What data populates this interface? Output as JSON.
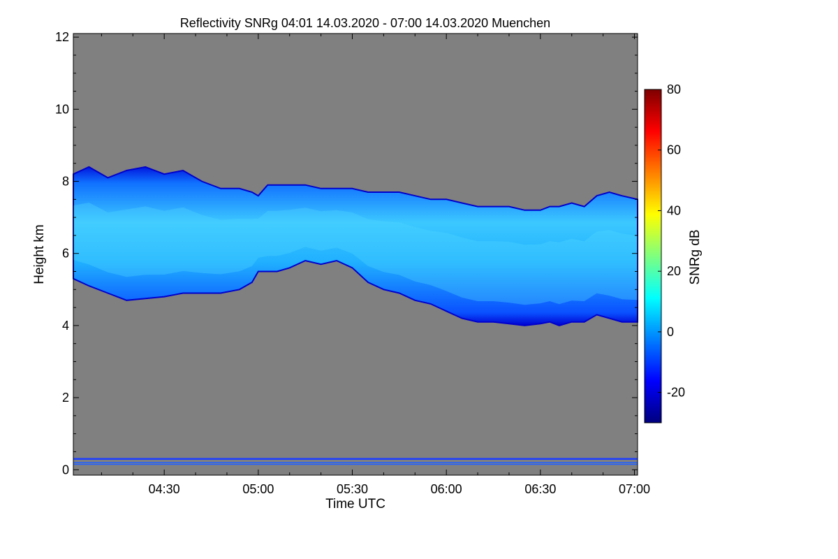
{
  "chart_data": {
    "type": "heatmap",
    "title": "Reflectivity SNRg   04:01 14.03.2020 - 07:00 14.03.2020 Muenchen",
    "xlabel": "Time UTC",
    "ylabel": "Height km",
    "x_range_minutes_utc": [
      241,
      421
    ],
    "x_ticks": [
      {
        "value": 270,
        "label": "04:30"
      },
      {
        "value": 300,
        "label": "05:00"
      },
      {
        "value": 330,
        "label": "05:30"
      },
      {
        "value": 360,
        "label": "06:00"
      },
      {
        "value": 390,
        "label": "06:30"
      },
      {
        "value": 420,
        "label": "07:00"
      }
    ],
    "y_range_km": [
      -0.15,
      12.1
    ],
    "y_ticks": [
      {
        "value": 0,
        "label": "0"
      },
      {
        "value": 2,
        "label": "2"
      },
      {
        "value": 4,
        "label": "4"
      },
      {
        "value": 6,
        "label": "6"
      },
      {
        "value": 8,
        "label": "8"
      },
      {
        "value": 10,
        "label": "10"
      },
      {
        "value": 12,
        "label": "12"
      }
    ],
    "colorbar": {
      "label": "SNRg dB",
      "range": [
        -30,
        80
      ],
      "ticks": [
        {
          "value": -20,
          "label": "-20"
        },
        {
          "value": 0,
          "label": "0"
        },
        {
          "value": 20,
          "label": "20"
        },
        {
          "value": 40,
          "label": "40"
        },
        {
          "value": 60,
          "label": "60"
        },
        {
          "value": 80,
          "label": "80"
        }
      ],
      "colormap": [
        "#00007f",
        "#0000ff",
        "#007fff",
        "#00ffff",
        "#7fff7f",
        "#ffff00",
        "#ff7f00",
        "#ff0000",
        "#7f0000"
      ]
    },
    "background_color": "#808080",
    "cloud_layer": {
      "description_values_snr_db": [
        -20,
        10
      ],
      "time_minutes": [
        241,
        246,
        252,
        258,
        264,
        270,
        276,
        282,
        288,
        294,
        298,
        300,
        303,
        306,
        310,
        315,
        320,
        325,
        330,
        335,
        340,
        345,
        350,
        355,
        360,
        365,
        370,
        375,
        380,
        385,
        390,
        393,
        396,
        400,
        404,
        408,
        412,
        416,
        421
      ],
      "top_km": [
        8.2,
        8.4,
        8.1,
        8.3,
        8.4,
        8.2,
        8.3,
        8.0,
        7.8,
        7.8,
        7.7,
        7.6,
        7.9,
        7.9,
        7.9,
        7.9,
        7.8,
        7.8,
        7.8,
        7.7,
        7.7,
        7.7,
        7.6,
        7.5,
        7.5,
        7.4,
        7.3,
        7.3,
        7.3,
        7.2,
        7.2,
        7.3,
        7.3,
        7.4,
        7.3,
        7.6,
        7.7,
        7.6,
        7.5
      ],
      "base_km": [
        5.3,
        5.1,
        4.9,
        4.7,
        4.75,
        4.8,
        4.9,
        4.9,
        4.9,
        5.0,
        5.2,
        5.5,
        5.5,
        5.5,
        5.6,
        5.8,
        5.7,
        5.8,
        5.6,
        5.2,
        5.0,
        4.9,
        4.7,
        4.6,
        4.4,
        4.2,
        4.1,
        4.1,
        4.05,
        4.0,
        4.05,
        4.1,
        4.0,
        4.1,
        4.1,
        4.3,
        4.2,
        4.1,
        4.1
      ]
    },
    "near_ground_lines_km": [
      0.3,
      0.2,
      0.15
    ]
  }
}
